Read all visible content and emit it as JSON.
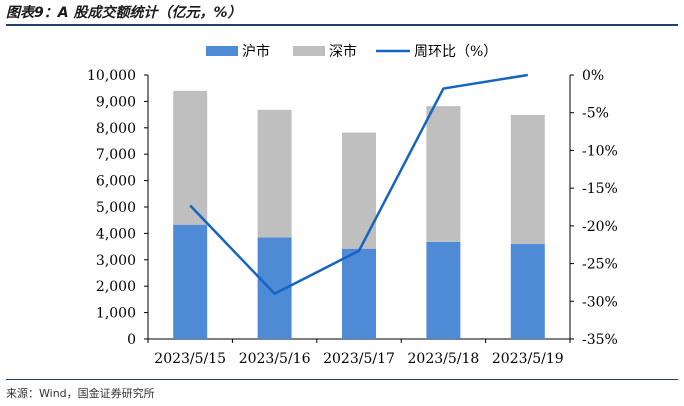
{
  "title": "图表9：A 股成交额统计（亿元，%）",
  "source": "来源：Wind，国金证券研究所",
  "colors": {
    "sh": "#4e8ad6",
    "sz": "#bfbfbf",
    "line": "#1565c0",
    "rule": "#1f3f6e"
  },
  "chart_data": {
    "type": "bar",
    "stacked": true,
    "categories": [
      "2023/5/15",
      "2023/5/16",
      "2023/5/17",
      "2023/5/18",
      "2023/5/19"
    ],
    "series": [
      {
        "name": "沪市",
        "type": "bar",
        "axis": "left",
        "values": [
          4330,
          3850,
          3420,
          3680,
          3600
        ]
      },
      {
        "name": "深市",
        "type": "bar",
        "axis": "left",
        "values": [
          5070,
          4830,
          4400,
          5140,
          4890
        ]
      },
      {
        "name": "周环比（%）",
        "type": "line",
        "axis": "right",
        "values": [
          -17.3,
          -29.0,
          -23.3,
          -1.8,
          0
        ]
      }
    ],
    "ylim_left": [
      0,
      10000
    ],
    "yticks_left": [
      "0",
      "1,000",
      "2,000",
      "3,000",
      "4,000",
      "5,000",
      "6,000",
      "7,000",
      "8,000",
      "9,000",
      "10,000"
    ],
    "ylim_right": [
      -35,
      0
    ],
    "yticks_right": [
      "0%",
      "-5%",
      "-10%",
      "-15%",
      "-20%",
      "-25%",
      "-30%",
      "-35%"
    ],
    "legend_position": "top",
    "grid": false
  }
}
